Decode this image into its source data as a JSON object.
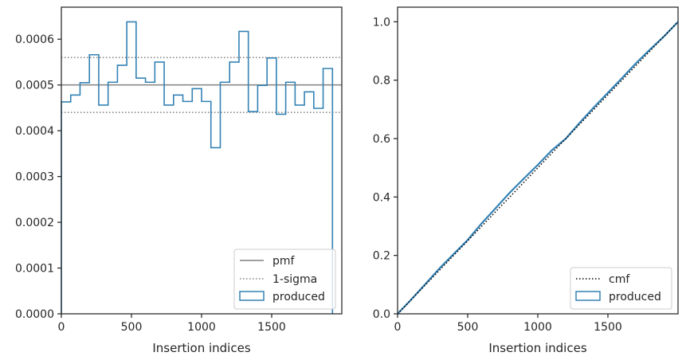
{
  "colors": {
    "hist": "#3482b4",
    "pmf": "#808080",
    "sigma": "#808080",
    "cmf": "#000000",
    "axes": "#262626"
  },
  "chart_data": [
    {
      "type": "histogram",
      "xlabel": "Insertion indices",
      "ylabel": "",
      "xlim": [
        0,
        2000
      ],
      "ylim": [
        0,
        0.00067
      ],
      "xticks": [
        0,
        500,
        1000,
        1500
      ],
      "yticks": [
        0.0,
        0.0001,
        0.0002,
        0.0003,
        0.0004,
        0.0005,
        0.0006
      ],
      "ytick_labels": [
        "0.0000",
        "0.0001",
        "0.0002",
        "0.0003",
        "0.0004",
        "0.0005",
        "0.0006"
      ],
      "legend_placement": "lower right",
      "legend": [
        "pmf",
        "1-sigma",
        "produced"
      ],
      "reference_lines": {
        "pmf": 0.0005,
        "sigma_upper": 0.00056,
        "sigma_lower": 0.00044
      },
      "bin_width": 66.67,
      "series": [
        {
          "name": "produced",
          "values": [
            0.000463,
            0.000478,
            0.000505,
            0.000566,
            0.000456,
            0.000506,
            0.000543,
            0.000638,
            0.000515,
            0.000506,
            0.00055,
            0.000456,
            0.000478,
            0.000464,
            0.000492,
            0.000464,
            0.000363,
            0.000506,
            0.00055,
            0.000617,
            0.000442,
            0.000499,
            0.000559,
            0.000436,
            0.000506,
            0.000456,
            0.000485,
            0.000449,
            0.000536
          ]
        }
      ]
    },
    {
      "type": "line",
      "xlabel": "Insertion indices",
      "ylabel": "",
      "xlim": [
        0,
        2000
      ],
      "ylim": [
        0,
        1.05
      ],
      "xticks": [
        0,
        500,
        1000,
        1500
      ],
      "yticks": [
        0.0,
        0.2,
        0.4,
        0.6,
        0.8,
        1.0
      ],
      "ytick_labels": [
        "0.0",
        "0.2",
        "0.4",
        "0.6",
        "0.8",
        "1.0"
      ],
      "legend_placement": "lower right",
      "legend": [
        "cmf",
        "produced"
      ],
      "series": [
        {
          "name": "cmf",
          "x": [
            0,
            2000
          ],
          "y": [
            0,
            1.0
          ]
        },
        {
          "name": "produced",
          "x": [
            0,
            100,
            200,
            300,
            400,
            500,
            600,
            700,
            800,
            900,
            1000,
            1100,
            1200,
            1300,
            1400,
            1500,
            1600,
            1700,
            1800,
            1900,
            2000
          ],
          "y": [
            0,
            0.05,
            0.103,
            0.156,
            0.205,
            0.253,
            0.31,
            0.362,
            0.415,
            0.463,
            0.51,
            0.56,
            0.6,
            0.655,
            0.707,
            0.757,
            0.807,
            0.858,
            0.905,
            0.95,
            1.0
          ]
        }
      ]
    }
  ]
}
